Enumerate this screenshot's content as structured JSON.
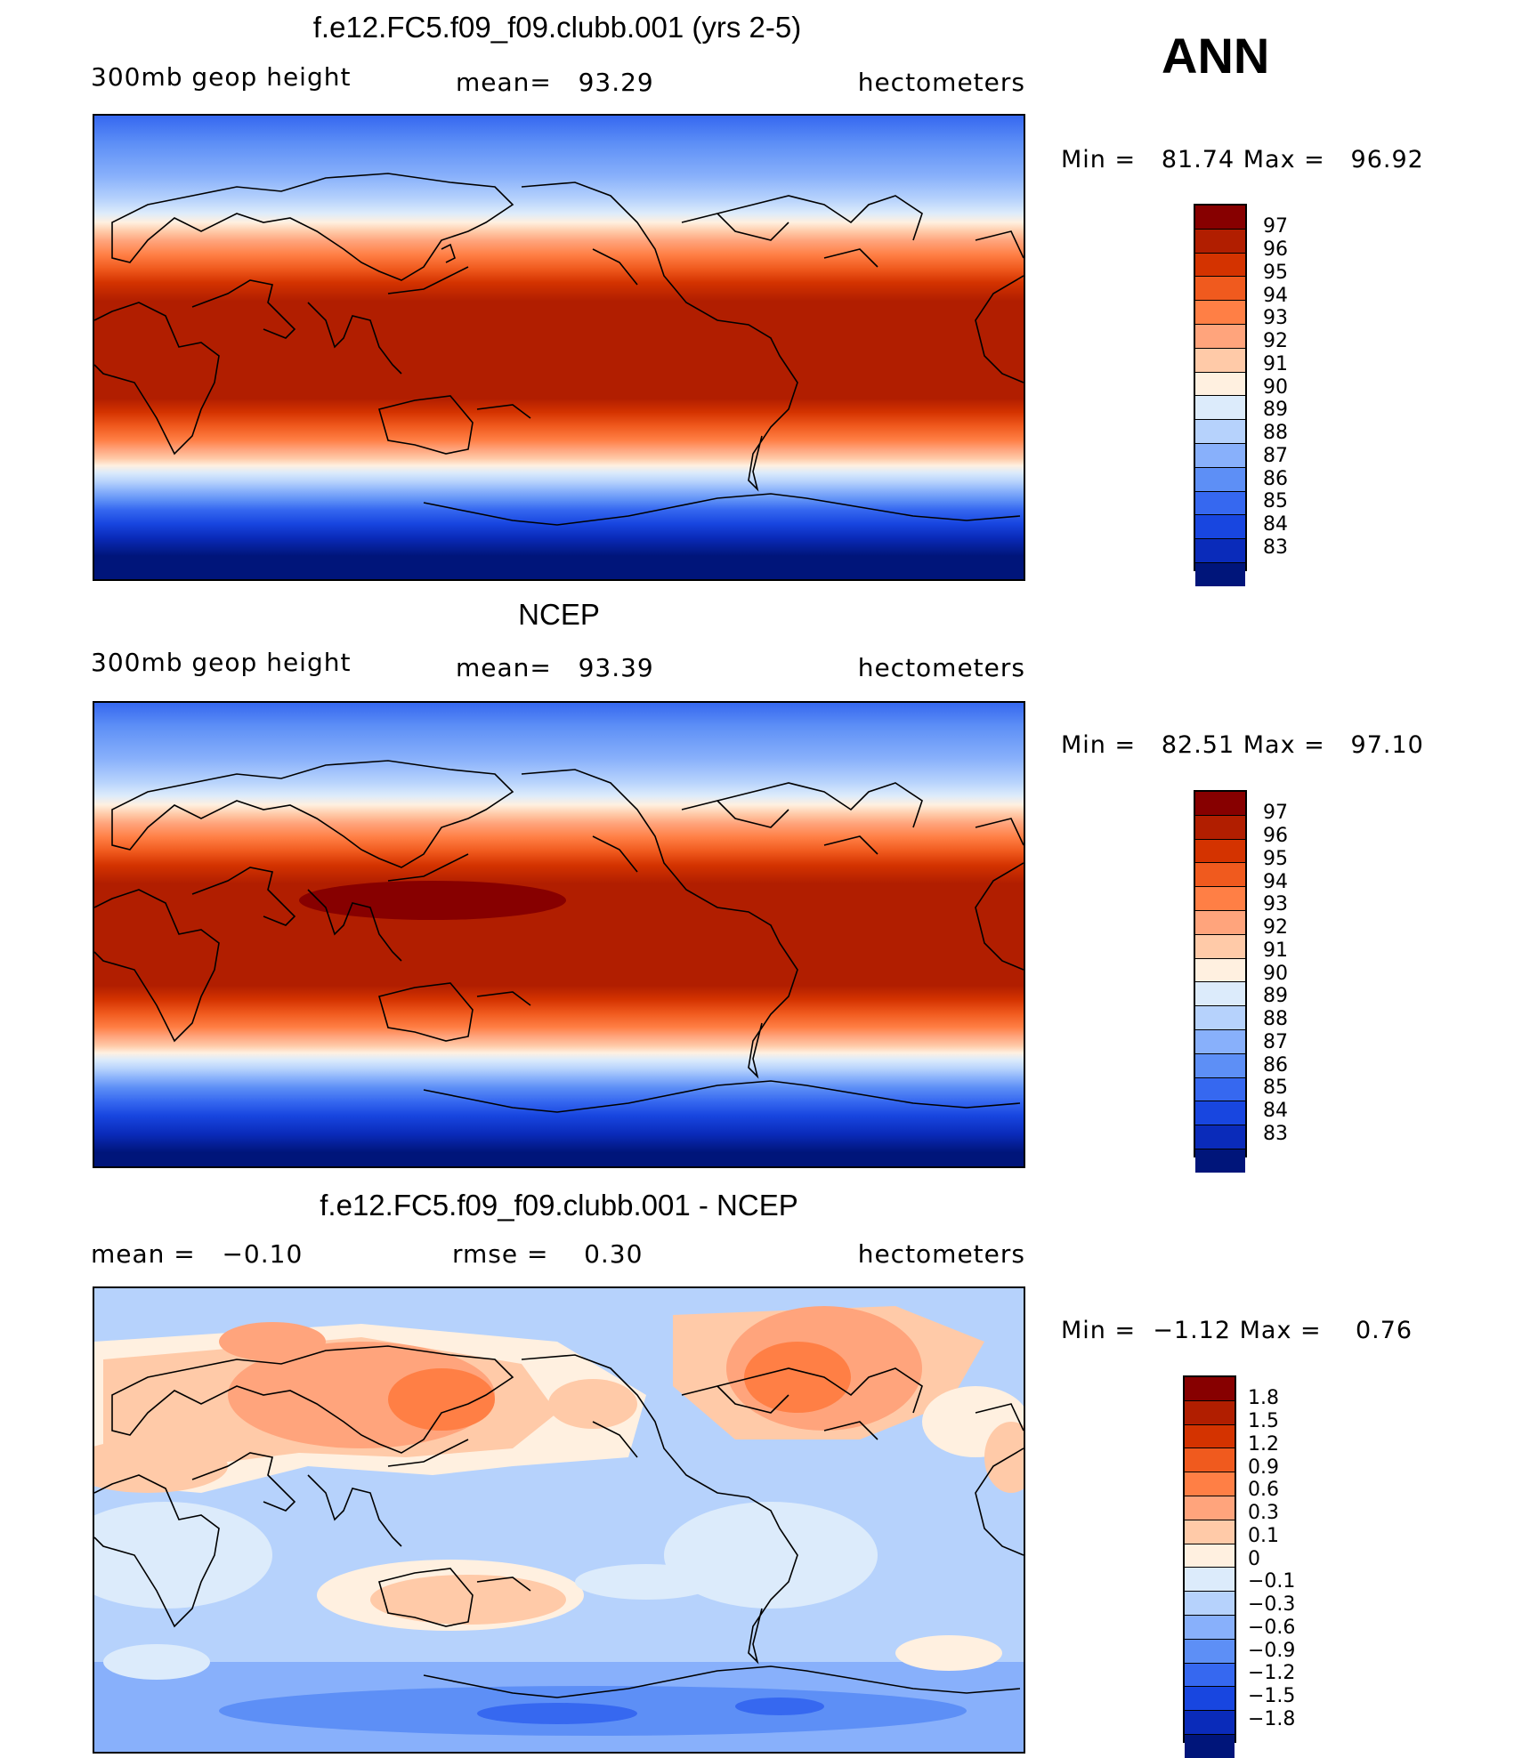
{
  "figure_label": "ANN",
  "panels": [
    {
      "title": "f.e12.FC5.f09_f09.clubb.001 (yrs 2-5)",
      "left_label": "300mb geop height",
      "center_label": "mean=   93.29",
      "right_label": "hectometers",
      "minmax": "Min =   81.74 Max =   96.92",
      "colorbar": [
        "97",
        "96",
        "95",
        "94",
        "93",
        "92",
        "91",
        "90",
        "89",
        "88",
        "87",
        "86",
        "85",
        "84",
        "83"
      ]
    },
    {
      "title": "NCEP",
      "left_label": "300mb geop height",
      "center_label": "mean=   93.39",
      "right_label": "hectometers",
      "minmax": "Min =   82.51 Max =   97.10",
      "colorbar": [
        "97",
        "96",
        "95",
        "94",
        "93",
        "92",
        "91",
        "90",
        "89",
        "88",
        "87",
        "86",
        "85",
        "84",
        "83"
      ]
    },
    {
      "title": "f.e12.FC5.f09_f09.clubb.001 - NCEP",
      "left_label": "mean =   −0.10",
      "center_label": "rmse =    0.30",
      "right_label": "hectometers",
      "minmax": "Min =  −1.12 Max =    0.76",
      "colorbar": [
        "1.8",
        "1.5",
        "1.2",
        "0.9",
        "0.6",
        "0.3",
        "0.1",
        "0",
        "−0.1",
        "−0.3",
        "−0.6",
        "−0.9",
        "−1.2",
        "−1.5",
        "−1.8"
      ]
    }
  ],
  "colors": {
    "palette": [
      "#870000",
      "#b11e00",
      "#d43300",
      "#f05a1e",
      "#ff7f45",
      "#ffa47c",
      "#ffcaa8",
      "#fff0e0",
      "#dcebfb",
      "#b6d2fc",
      "#88b0fb",
      "#5d8ff6",
      "#3668f0",
      "#1846e0",
      "#0a2bba",
      "#00157a"
    ],
    "coast": "#000000"
  }
}
